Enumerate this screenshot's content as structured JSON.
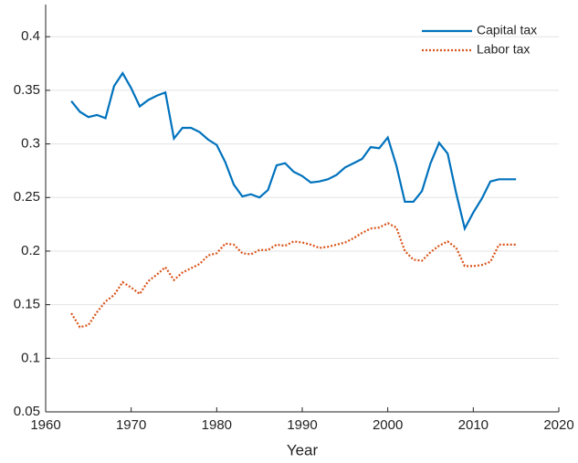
{
  "chart_data": {
    "type": "line",
    "xlabel": "Year",
    "x": [
      1963,
      1964,
      1965,
      1966,
      1967,
      1968,
      1969,
      1970,
      1971,
      1972,
      1973,
      1974,
      1975,
      1976,
      1977,
      1978,
      1979,
      1980,
      1981,
      1982,
      1983,
      1984,
      1985,
      1986,
      1987,
      1988,
      1989,
      1990,
      1991,
      1992,
      1993,
      1994,
      1995,
      1996,
      1997,
      1998,
      1999,
      2000,
      2001,
      2002,
      2003,
      2004,
      2005,
      2006,
      2007,
      2008,
      2009,
      2010,
      2011,
      2012,
      2013,
      2014,
      2015
    ],
    "series": [
      {
        "name": "Capital tax",
        "color": "#0072bd",
        "dash": "solid",
        "values": [
          0.34,
          0.33,
          0.325,
          0.327,
          0.324,
          0.354,
          0.366,
          0.352,
          0.335,
          0.341,
          0.345,
          0.348,
          0.305,
          0.315,
          0.315,
          0.311,
          0.304,
          0.299,
          0.283,
          0.262,
          0.251,
          0.253,
          0.25,
          0.257,
          0.28,
          0.282,
          0.274,
          0.27,
          0.264,
          0.265,
          0.267,
          0.271,
          0.278,
          0.282,
          0.286,
          0.297,
          0.296,
          0.306,
          0.28,
          0.246,
          0.246,
          0.256,
          0.282,
          0.301,
          0.291,
          0.254,
          0.221,
          0.236,
          0.249,
          0.265,
          0.267,
          0.267,
          0.267
        ]
      },
      {
        "name": "Labor tax",
        "color": "#d95319",
        "dash": "dotted",
        "values": [
          0.142,
          0.129,
          0.131,
          0.143,
          0.153,
          0.159,
          0.171,
          0.166,
          0.16,
          0.172,
          0.178,
          0.185,
          0.173,
          0.18,
          0.184,
          0.188,
          0.196,
          0.198,
          0.207,
          0.206,
          0.198,
          0.197,
          0.201,
          0.201,
          0.206,
          0.205,
          0.209,
          0.208,
          0.206,
          0.203,
          0.204,
          0.206,
          0.208,
          0.212,
          0.217,
          0.221,
          0.222,
          0.226,
          0.222,
          0.2,
          0.192,
          0.191,
          0.199,
          0.205,
          0.209,
          0.203,
          0.186,
          0.186,
          0.187,
          0.19,
          0.206,
          0.206,
          0.206
        ]
      }
    ],
    "xlim": [
      1960,
      2020
    ],
    "xticks": [
      1960,
      1970,
      1980,
      1990,
      2000,
      2010,
      2020
    ],
    "ylim": [
      0.05,
      0.43
    ],
    "yticks": [
      0.05,
      0.1,
      0.15,
      0.2,
      0.25,
      0.3,
      0.35,
      0.4
    ],
    "grid": true,
    "legend": "top-right"
  }
}
